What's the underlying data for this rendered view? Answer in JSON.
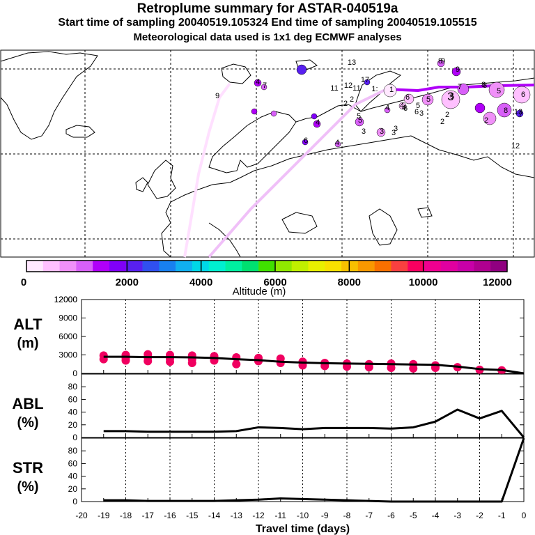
{
  "header": {
    "title": "Retroplume summary for ASTAR-040519a",
    "sampling_line": "Start time of sampling 20040519.105324     End time of sampling 20040519.105515",
    "met_line": "Meteorological data used is 1x1 deg ECMWF analyses"
  },
  "colorbar": {
    "label": "Altitude (m)",
    "ticks": [
      "0",
      "2000",
      "4000",
      "6000",
      "8000",
      "10000",
      "12000"
    ],
    "colors": [
      "#ffe8ff",
      "#ffc0ff",
      "#f090f8",
      "#d860f8",
      "#b000f8",
      "#8000f8",
      "#5820f0",
      "#3050f0",
      "#1880f0",
      "#10b0f0",
      "#00d8e8",
      "#00f0d0",
      "#00f0a0",
      "#00e070",
      "#40e000",
      "#90e800",
      "#c0f000",
      "#e8f000",
      "#f8e000",
      "#f8c000",
      "#f89800",
      "#f87000",
      "#f84040",
      "#f80060",
      "#f00090",
      "#e000a0",
      "#c800a8",
      "#b00090",
      "#900080"
    ]
  },
  "map": {
    "labels": [
      "9",
      "9",
      "8",
      "13",
      "11",
      "12",
      "17",
      "11",
      "1:",
      "1",
      "12",
      "2",
      "2",
      "4",
      "5",
      "3",
      "5",
      "2",
      "3",
      "4",
      "8",
      "5",
      "6",
      "6",
      "3",
      "3",
      "3",
      "3",
      "2",
      "4",
      "2",
      "5",
      "7",
      "8",
      "7",
      "9",
      "8",
      "7",
      "4",
      "6",
      "5",
      "6",
      "4",
      "4",
      "5",
      "6",
      "13"
    ]
  },
  "chart_data": [
    {
      "type": "line",
      "panel": "ALT",
      "ylabel": "ALT (m)",
      "xlabel": "Travel time (days)",
      "ylim": [
        0,
        12000
      ],
      "yticks": [
        0,
        3000,
        6000,
        9000,
        12000
      ],
      "x": [
        -19,
        -18,
        -17,
        -16,
        -15,
        -14,
        -13,
        -12,
        -11,
        -10,
        -9,
        -8,
        -7,
        -6,
        -5,
        -4,
        -3,
        -2,
        -1,
        0
      ],
      "series": [
        {
          "name": "mean altitude",
          "values": [
            2700,
            2700,
            2650,
            2650,
            2600,
            2500,
            2300,
            2150,
            1900,
            1750,
            1650,
            1600,
            1550,
            1500,
            1450,
            1400,
            1100,
            700,
            550,
            0
          ]
        }
      ],
      "scatter_points": [
        {
          "x": -19,
          "y": 2900
        },
        {
          "x": -19,
          "y": 2300
        },
        {
          "x": -18,
          "y": 3000
        },
        {
          "x": -18,
          "y": 2500
        },
        {
          "x": -18,
          "y": 2100
        },
        {
          "x": -17,
          "y": 3100
        },
        {
          "x": -17,
          "y": 2600
        },
        {
          "x": -17,
          "y": 2000
        },
        {
          "x": -16,
          "y": 3000
        },
        {
          "x": -16,
          "y": 2400
        },
        {
          "x": -16,
          "y": 1900
        },
        {
          "x": -15,
          "y": 2900
        },
        {
          "x": -15,
          "y": 2300
        },
        {
          "x": -15,
          "y": 1700
        },
        {
          "x": -14,
          "y": 2800
        },
        {
          "x": -14,
          "y": 2100
        },
        {
          "x": -13,
          "y": 2600
        },
        {
          "x": -13,
          "y": 1500
        },
        {
          "x": -12,
          "y": 2500
        },
        {
          "x": -12,
          "y": 2000
        },
        {
          "x": -11,
          "y": 2400
        },
        {
          "x": -11,
          "y": 1700
        },
        {
          "x": -10,
          "y": 1900
        },
        {
          "x": -10,
          "y": 1300
        },
        {
          "x": -9,
          "y": 1700
        },
        {
          "x": -9,
          "y": 1200
        },
        {
          "x": -8,
          "y": 1600
        },
        {
          "x": -8,
          "y": 1100
        },
        {
          "x": -7,
          "y": 1500
        },
        {
          "x": -7,
          "y": 1000
        },
        {
          "x": -6,
          "y": 1600
        },
        {
          "x": -6,
          "y": 900
        },
        {
          "x": -5,
          "y": 1500
        },
        {
          "x": -5,
          "y": 800
        },
        {
          "x": -4,
          "y": 1300
        },
        {
          "x": -4,
          "y": 900
        },
        {
          "x": -3,
          "y": 1000
        },
        {
          "x": -2,
          "y": 600
        },
        {
          "x": -1,
          "y": 500
        }
      ]
    },
    {
      "type": "line",
      "panel": "ABL",
      "ylabel": "ABL (%)",
      "ylim": [
        0,
        100
      ],
      "yticks": [
        0,
        20,
        40,
        60,
        80
      ],
      "x": [
        -19,
        -18,
        -17,
        -16,
        -15,
        -14,
        -13,
        -12,
        -11,
        -10,
        -9,
        -8,
        -7,
        -6,
        -5,
        -4,
        -3,
        -2,
        -1,
        0
      ],
      "series": [
        {
          "name": "fraction in ABL",
          "values": [
            10,
            10,
            9,
            9,
            9,
            9,
            10,
            16,
            15,
            13,
            15,
            15,
            15,
            14,
            16,
            25,
            44,
            30,
            42,
            0
          ]
        }
      ]
    },
    {
      "type": "line",
      "panel": "STR",
      "ylabel": "STR (%)",
      "ylim": [
        0,
        100
      ],
      "yticks": [
        0,
        20,
        40,
        60,
        80
      ],
      "x": [
        -19,
        -18,
        -17,
        -16,
        -15,
        -14,
        -13,
        -12,
        -11,
        -10,
        -9,
        -8,
        -7,
        -6,
        -5,
        -4,
        -3,
        -2,
        -1,
        0
      ],
      "xticks": [
        "-20",
        "-19",
        "-18",
        "-17",
        "-16",
        "-15",
        "-14",
        "-13",
        "-12",
        "-11",
        "-10",
        "-9",
        "-8",
        "-7",
        "-6",
        "-5",
        "-4",
        "-3",
        "-2",
        "-1",
        "0"
      ],
      "xlabel": "Travel time (days)",
      "series": [
        {
          "name": "fraction in stratosphere",
          "values": [
            2,
            2,
            1,
            1,
            1,
            1,
            2,
            3,
            5,
            4,
            3,
            2,
            1,
            0,
            0,
            0,
            0,
            0,
            0,
            100
          ]
        }
      ]
    }
  ]
}
